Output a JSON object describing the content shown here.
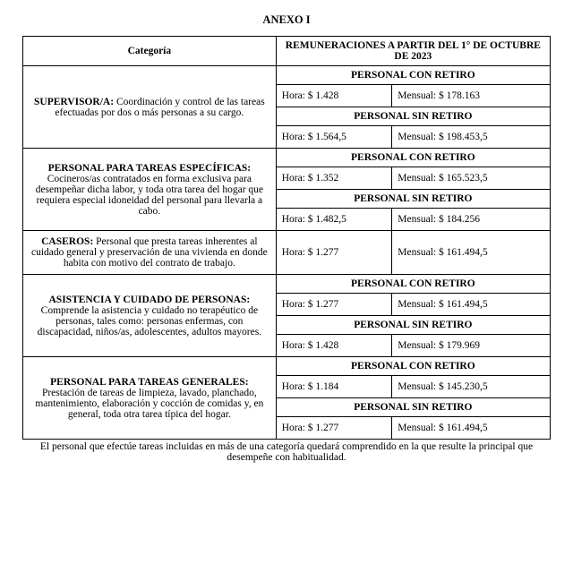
{
  "title": "ANEXO I",
  "headers": {
    "categoria": "Categoría",
    "remuneraciones": "REMUNERACIONES A PARTIR DEL 1° DE OCTUBRE DE 2023"
  },
  "labels": {
    "con_retiro": "PERSONAL CON RETIRO",
    "sin_retiro": "PERSONAL SIN RETIRO",
    "hora": "Hora:",
    "mensual": "Mensual:"
  },
  "categories": {
    "supervisor": {
      "title": "SUPERVISOR/A:",
      "desc": " Coordinación y control de las tareas efectuadas por dos o más personas a su cargo.",
      "con": {
        "hora": "$ 1.428",
        "mensual": "$ 178.163"
      },
      "sin": {
        "hora": "$ 1.564,5",
        "mensual": "$ 198.453,5"
      }
    },
    "especificas": {
      "title": "PERSONAL PARA TAREAS ESPECÍFICAS:",
      "desc": " Cocineros/as contratados en forma exclusiva para desempeñar dicha labor, y toda otra tarea del hogar que requiera especial idoneidad del personal para llevarla a cabo.",
      "con": {
        "hora": "$ 1.352",
        "mensual": "$ 165.523,5"
      },
      "sin": {
        "hora": "$ 1.482,5",
        "mensual": "$ 184.256"
      }
    },
    "caseros": {
      "title": "CASEROS:",
      "desc": " Personal que presta tareas inherentes al cuidado general y preservación de una vivienda en donde habita con motivo del contrato de trabajo.",
      "single": {
        "hora": "$ 1.277",
        "mensual": "$ 161.494,5"
      }
    },
    "asistencia": {
      "title": "ASISTENCIA Y CUIDADO DE PERSONAS:",
      "desc": " Comprende la asistencia y cuidado no terapéutico de personas, tales como: personas enfermas, con discapacidad, niños/as, adolescentes, adultos mayores.",
      "con": {
        "hora": "$ 1.277",
        "mensual": "$ 161.494,5"
      },
      "sin": {
        "hora": "$ 1.428",
        "mensual": "$ 179.969"
      }
    },
    "generales": {
      "title": "PERSONAL PARA TAREAS GENERALES:",
      "desc": " Prestación de tareas de limpieza, lavado, planchado, mantenimiento, elaboración y cocción de comidas y, en general, toda otra tarea típica del hogar.",
      "con": {
        "hora": "$ 1.184",
        "mensual": "$ 145.230,5"
      },
      "sin": {
        "hora": "$ 1.277",
        "mensual": "$ 161.494,5"
      }
    }
  },
  "footnote": "El personal que efectúe tareas incluidas en más de una categoría quedará comprendido en la que resulte la principal que desempeñe con habitualidad."
}
